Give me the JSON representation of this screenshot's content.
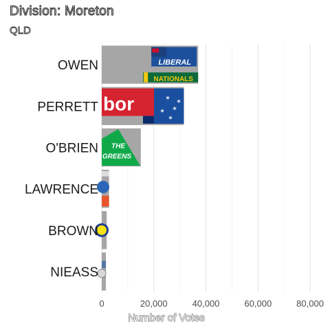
{
  "chart_data": {
    "type": "bar",
    "orientation": "horizontal",
    "title": "Division: Moreton",
    "subtitle": "QLD",
    "xlabel": "Number of Votes",
    "ylabel": "",
    "categories": [
      "OWEN",
      "PERRETT",
      "O'BRIEN",
      "LAWRENCE",
      "BROWN",
      "NIEASS"
    ],
    "values": [
      37000,
      31500,
      15000,
      2800,
      1900,
      1600
    ],
    "parties": [
      "liberal-nationals-logo",
      "labor-logo",
      "greens-logo",
      "party-logo",
      "party-logo",
      "party-logo"
    ],
    "xlim": [
      0,
      85000
    ],
    "xticks": [
      0,
      20000,
      40000,
      60000,
      80000
    ],
    "xtick_labels": [
      "0",
      "20,000",
      "40,000",
      "60,000",
      "80,000"
    ],
    "grid": true,
    "bar_color": "#a6a6a6",
    "grid_color": "#e6e6e6",
    "logo_text": {
      "liberal": "LIBERAL",
      "nationals": "NATIONALS",
      "labor": "bor",
      "greens_top": "THE",
      "greens_bottom": "GREENS"
    }
  }
}
